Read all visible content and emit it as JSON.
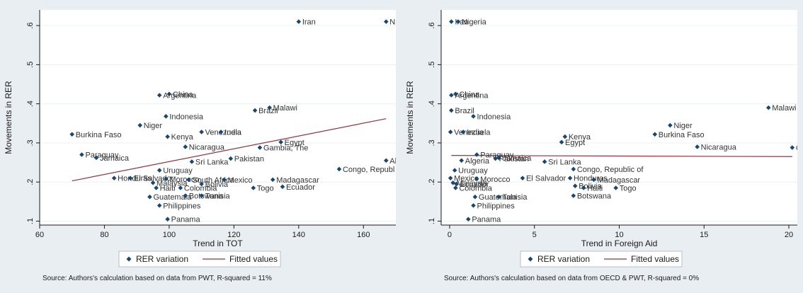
{
  "chart_data": [
    {
      "type": "scatter",
      "title": "",
      "xlabel": "Trend in TOT",
      "ylabel": "Movements in RER",
      "xlim": [
        60,
        170
      ],
      "ylim": [
        0.09,
        0.64
      ],
      "xticks": [
        "60",
        "80",
        "100",
        "120",
        "140",
        "160"
      ],
      "xtick_values": [
        60,
        80,
        100,
        120,
        140,
        160
      ],
      "yticks": [
        ".1",
        ".2",
        ".3",
        ".4",
        ".5",
        ".6"
      ],
      "ytick_values": [
        0.1,
        0.2,
        0.3,
        0.4,
        0.5,
        0.6
      ],
      "grid": "horizontal",
      "legend_position": "bottom",
      "legend": [
        "RER variation",
        "Fitted values"
      ],
      "note": "Source: Authors's calculation based on data from PWT, R-squared = 11%",
      "series": [
        {
          "name": "RER variation",
          "kind": "marker",
          "points": [
            {
              "label": "Iran",
              "x": 140,
              "y": 0.61
            },
            {
              "label": "Nig",
              "x": 167,
              "y": 0.61
            },
            {
              "label": "China",
              "x": 100,
              "y": 0.425
            },
            {
              "label": "Argentina",
              "x": 97,
              "y": 0.422
            },
            {
              "label": "Malawi",
              "x": 131,
              "y": 0.39
            },
            {
              "label": "Brazil",
              "x": 126.5,
              "y": 0.383
            },
            {
              "label": "Indonesia",
              "x": 99,
              "y": 0.368
            },
            {
              "label": "Niger",
              "x": 91,
              "y": 0.345
            },
            {
              "label": "Venezuela",
              "x": 110,
              "y": 0.328
            },
            {
              "label": "India",
              "x": 116,
              "y": 0.328
            },
            {
              "label": "Burkina Faso",
              "x": 70,
              "y": 0.322
            },
            {
              "label": "Kenya",
              "x": 99.5,
              "y": 0.316
            },
            {
              "label": "Egypt",
              "x": 134.5,
              "y": 0.302
            },
            {
              "label": "Nicaragua",
              "x": 105,
              "y": 0.29
            },
            {
              "label": "Gambia, The",
              "x": 128,
              "y": 0.288
            },
            {
              "label": "Paraguay",
              "x": 73,
              "y": 0.27
            },
            {
              "label": "Jamaica",
              "x": 77.5,
              "y": 0.262
            },
            {
              "label": "Pakistan",
              "x": 119,
              "y": 0.26
            },
            {
              "label": "Sri Lanka",
              "x": 107,
              "y": 0.252
            },
            {
              "label": "Alg",
              "x": 167,
              "y": 0.255
            },
            {
              "label": "Congo, Republ",
              "x": 152.5,
              "y": 0.233
            },
            {
              "label": "Uruguay",
              "x": 97,
              "y": 0.23
            },
            {
              "label": "Honduras",
              "x": 83,
              "y": 0.21
            },
            {
              "label": "El Salvador",
              "x": 88,
              "y": 0.21
            },
            {
              "label": "Morocco",
              "x": 99,
              "y": 0.208
            },
            {
              "label": "South Africa",
              "x": 106,
              "y": 0.206
            },
            {
              "label": "Mexico",
              "x": 117,
              "y": 0.206
            },
            {
              "label": "Madagascar",
              "x": 132,
              "y": 0.206
            },
            {
              "label": "Malaysia",
              "x": 95,
              "y": 0.198
            },
            {
              "label": "Bolivia",
              "x": 110,
              "y": 0.195
            },
            {
              "label": "Haiti",
              "x": 96,
              "y": 0.185
            },
            {
              "label": "Colombia",
              "x": 103.5,
              "y": 0.185
            },
            {
              "label": "Togo",
              "x": 126,
              "y": 0.185
            },
            {
              "label": "Ecuador",
              "x": 135,
              "y": 0.188
            },
            {
              "label": "Guatemala",
              "x": 94,
              "y": 0.162
            },
            {
              "label": "Botswana",
              "x": 105,
              "y": 0.165
            },
            {
              "label": "Tunisia",
              "x": 110,
              "y": 0.165
            },
            {
              "label": "Philippines",
              "x": 97,
              "y": 0.14
            },
            {
              "label": "Panama",
              "x": 99.5,
              "y": 0.105
            }
          ]
        },
        {
          "name": "Fitted values",
          "kind": "line",
          "points": [
            {
              "x": 70,
              "y": 0.203
            },
            {
              "x": 167,
              "y": 0.362
            }
          ]
        }
      ]
    },
    {
      "type": "scatter",
      "title": "",
      "xlabel": "Trend in Foreign Aid",
      "ylabel": "Movements in RER",
      "xlim": [
        -0.5,
        20.5
      ],
      "ylim": [
        0.09,
        0.64
      ],
      "xticks": [
        "0",
        "5",
        "10",
        "15",
        "20"
      ],
      "xtick_values": [
        0,
        5,
        10,
        15,
        20
      ],
      "yticks": [
        ".1",
        ".2",
        ".3",
        ".4",
        ".5",
        ".6"
      ],
      "ytick_values": [
        0.1,
        0.2,
        0.3,
        0.4,
        0.5,
        0.6
      ],
      "grid": "horizontal",
      "legend_position": "bottom",
      "legend": [
        "RER variation",
        "Fitted values"
      ],
      "note": "Source: Authors's calculation based on data from OECD & PWT, R-squared = 0%",
      "series": [
        {
          "name": "RER variation",
          "kind": "marker",
          "points": [
            {
              "label": "Iran",
              "x": 0.1,
              "y": 0.61
            },
            {
              "label": "Nigeria",
              "x": 0.5,
              "y": 0.61
            },
            {
              "label": "China",
              "x": 0.35,
              "y": 0.425
            },
            {
              "label": "Argentina",
              "x": 0.1,
              "y": 0.422
            },
            {
              "label": "Malawi",
              "x": 18.8,
              "y": 0.39
            },
            {
              "label": "Brazil",
              "x": 0.1,
              "y": 0.383
            },
            {
              "label": "Indonesia",
              "x": 1.4,
              "y": 0.368
            },
            {
              "label": "Niger",
              "x": 13,
              "y": 0.345
            },
            {
              "label": "Venezuela",
              "x": 0.05,
              "y": 0.328
            },
            {
              "label": "India",
              "x": 0.8,
              "y": 0.328
            },
            {
              "label": "Burkina Faso",
              "x": 12.1,
              "y": 0.322
            },
            {
              "label": "Kenya",
              "x": 6.8,
              "y": 0.316
            },
            {
              "label": "Egypt",
              "x": 6.6,
              "y": 0.302
            },
            {
              "label": "Nicaragua",
              "x": 14.6,
              "y": 0.29
            },
            {
              "label": "Ga",
              "x": 20.2,
              "y": 0.288
            },
            {
              "label": "Paraguay",
              "x": 1.6,
              "y": 0.27
            },
            {
              "label": "Jamaica",
              "x": 2.9,
              "y": 0.262
            },
            {
              "label": "Pakistan",
              "x": 2.7,
              "y": 0.26
            },
            {
              "label": "Sri Lanka",
              "x": 5.6,
              "y": 0.252
            },
            {
              "label": "Algeria",
              "x": 0.7,
              "y": 0.255
            },
            {
              "label": "Congo, Republic of",
              "x": 7.3,
              "y": 0.233
            },
            {
              "label": "Uruguay",
              "x": 0.3,
              "y": 0.23
            },
            {
              "label": "Mexico",
              "x": 0.05,
              "y": 0.21
            },
            {
              "label": "Morocco",
              "x": 1.6,
              "y": 0.208
            },
            {
              "label": "El Salvador",
              "x": 4.3,
              "y": 0.21
            },
            {
              "label": "Honduras",
              "x": 7.1,
              "y": 0.21
            },
            {
              "label": "Madagascar",
              "x": 8.5,
              "y": 0.206
            },
            {
              "label": "Malaysia",
              "x": 0.2,
              "y": 0.198
            },
            {
              "label": "Ecuador",
              "x": 0.4,
              "y": 0.195
            },
            {
              "label": "Bolivia",
              "x": 7.4,
              "y": 0.19
            },
            {
              "label": "Haiti",
              "x": 7.9,
              "y": 0.185
            },
            {
              "label": "Colombia",
              "x": 0.35,
              "y": 0.185
            },
            {
              "label": "Togo",
              "x": 9.8,
              "y": 0.185
            },
            {
              "label": "Guatemala",
              "x": 1.5,
              "y": 0.162
            },
            {
              "label": "Tunisia",
              "x": 2.9,
              "y": 0.162
            },
            {
              "label": "Botswana",
              "x": 7.3,
              "y": 0.165
            },
            {
              "label": "Philippines",
              "x": 1.4,
              "y": 0.14
            },
            {
              "label": "Panama",
              "x": 1.1,
              "y": 0.105
            }
          ]
        },
        {
          "name": "Fitted values",
          "kind": "line",
          "points": [
            {
              "x": 0.1,
              "y": 0.268
            },
            {
              "x": 20.2,
              "y": 0.265
            }
          ]
        }
      ]
    }
  ]
}
